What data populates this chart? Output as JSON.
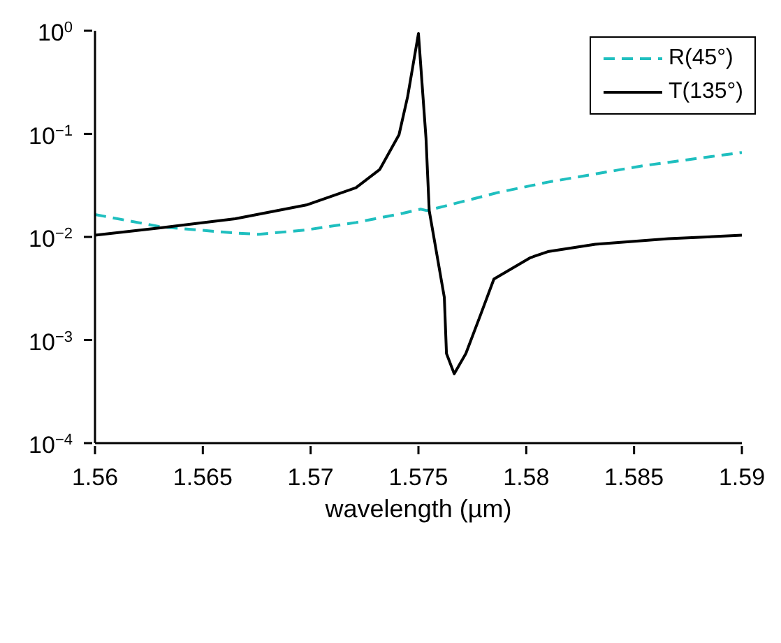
{
  "chart_data": {
    "type": "line",
    "xlabel": "wavelength (µm)",
    "log": "y",
    "xlim": [
      1.56,
      1.59
    ],
    "xticks": [
      1.56,
      1.565,
      1.57,
      1.575,
      1.58,
      1.585,
      1.59
    ],
    "ylim": [
      0.0001,
      1
    ],
    "yticks": [
      {
        "value": 0.0001,
        "label": "10$^{−4}$"
      },
      {
        "value": 0.001,
        "label": "10$^{−3}$"
      },
      {
        "value": 0.01,
        "label": "10$^{−2}$"
      },
      {
        "value": 0.1,
        "label": "10$^{−1}$"
      },
      {
        "value": 1,
        "label": "10$^{0}$"
      }
    ],
    "grid": false,
    "legend": "top right",
    "marker": "none",
    "series": [
      {
        "name": "R(45°)",
        "color": "#1fbfbf",
        "line_style": "dashed",
        "x": [
          1.56,
          1.5631,
          1.5665,
          1.5676,
          1.5698,
          1.5721,
          1.5743,
          1.5751,
          1.5754,
          1.5787,
          1.581,
          1.5854,
          1.59
        ],
        "values": [
          0.0165,
          0.0125,
          0.0109,
          0.0106,
          0.0117,
          0.0138,
          0.017,
          0.0186,
          0.018,
          0.027,
          0.034,
          0.049,
          0.066
        ]
      },
      {
        "name": "T(135°)",
        "color": "#000000",
        "line_style": "solid",
        "x": [
          1.56,
          1.5631,
          1.5665,
          1.5698,
          1.5721,
          1.5732,
          1.5741,
          1.5745,
          1.575,
          1.57535,
          1.5755,
          1.5762,
          1.5763,
          1.57666,
          1.5772,
          1.5779,
          1.5785,
          1.5802,
          1.581,
          1.5832,
          1.5866,
          1.59
        ],
        "values": [
          0.0104,
          0.0123,
          0.015,
          0.0204,
          0.03,
          0.045,
          0.098,
          0.23,
          0.94,
          0.091,
          0.018,
          0.0026,
          0.00074,
          0.00047,
          0.00074,
          0.0018,
          0.0039,
          0.0063,
          0.0072,
          0.0085,
          0.0096,
          0.0104
        ]
      }
    ]
  }
}
